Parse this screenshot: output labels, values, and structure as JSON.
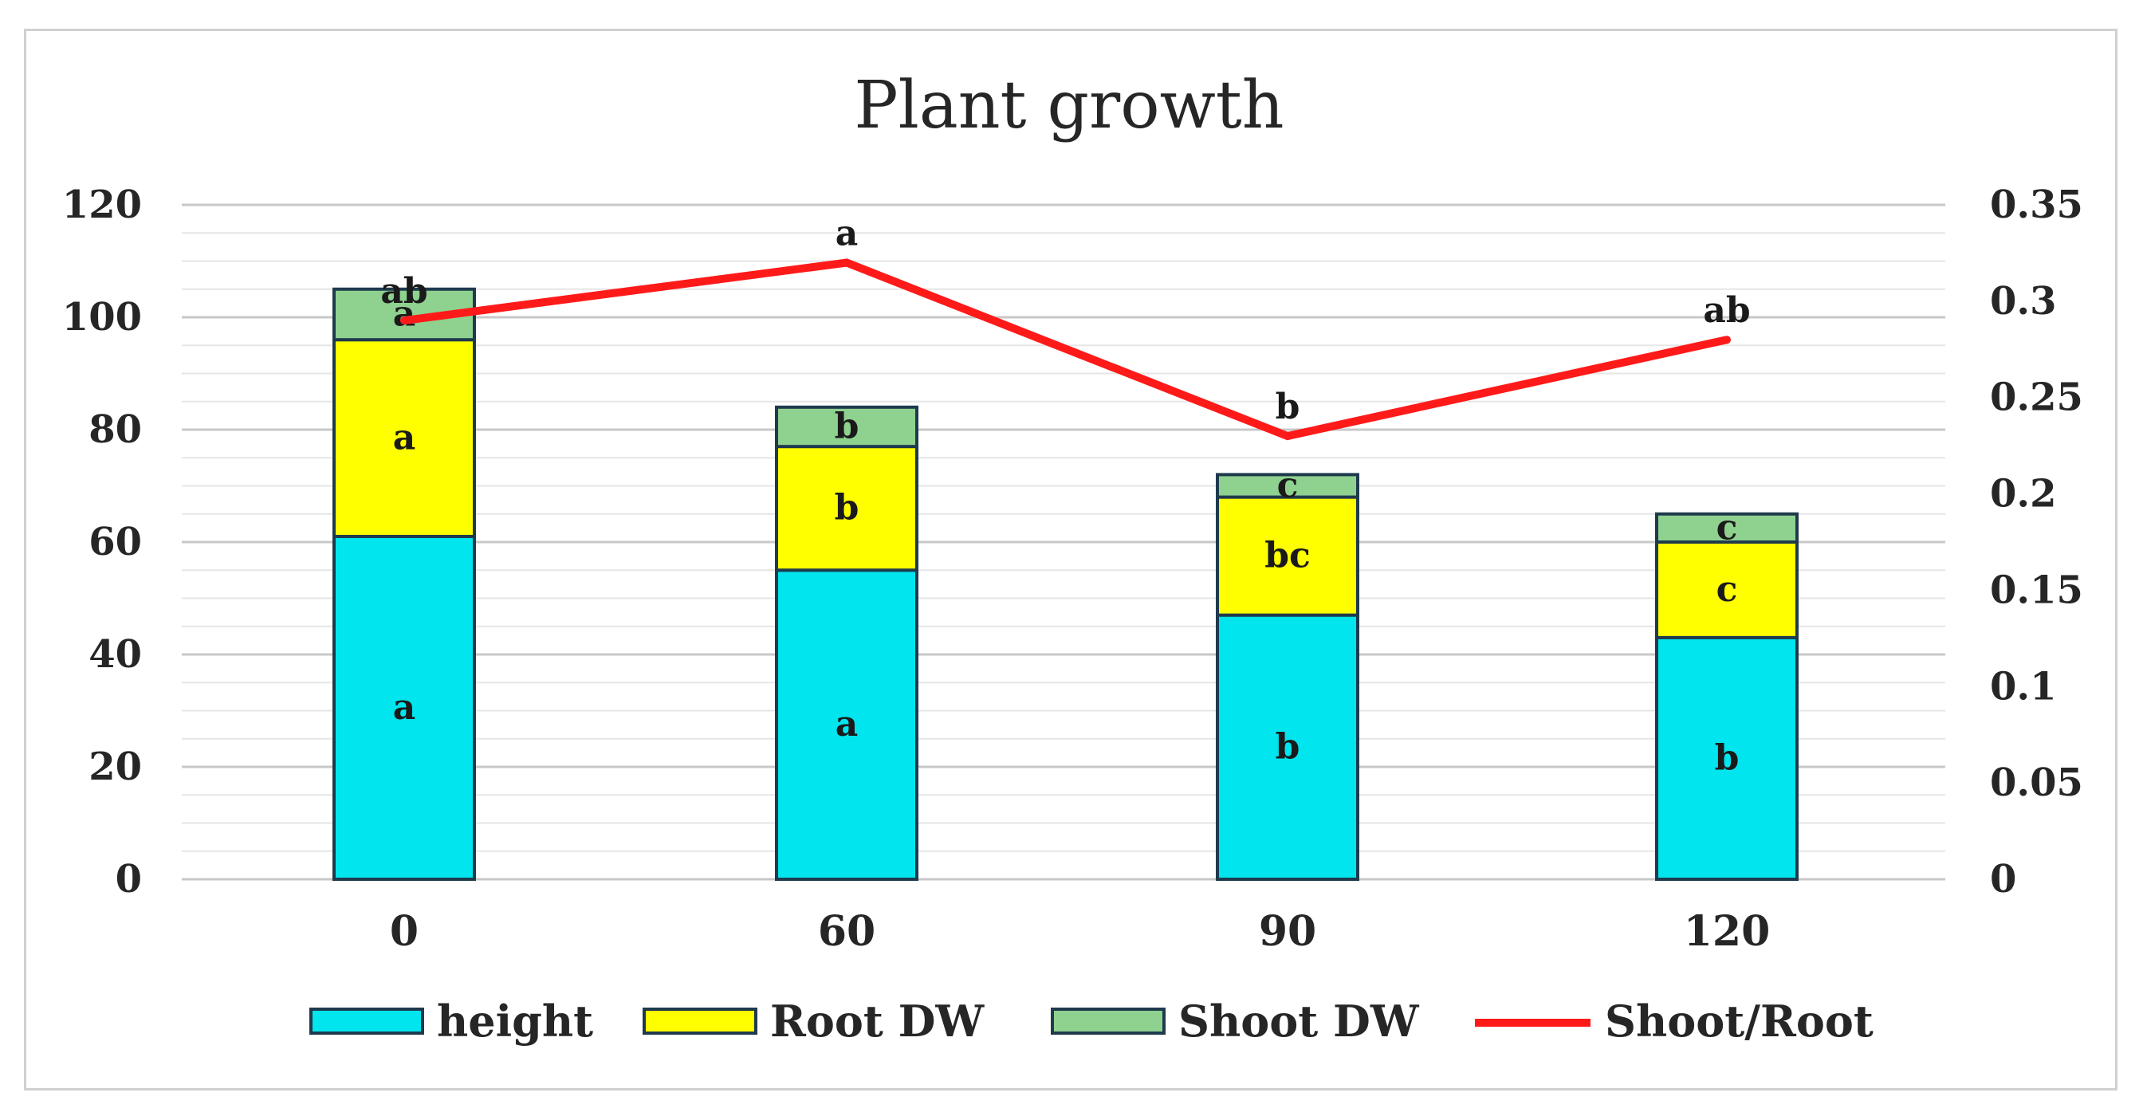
{
  "chart_data": {
    "type": "bar",
    "stacked": true,
    "title": "Plant growth",
    "categories": [
      "0",
      "60",
      "90",
      "120"
    ],
    "series": [
      {
        "name": "height",
        "kind": "bar",
        "axis": "left",
        "color": "#00e5ee",
        "values": [
          61,
          55,
          47,
          43
        ],
        "labels": [
          "a",
          "a",
          "b",
          "b"
        ]
      },
      {
        "name": "Root DW",
        "kind": "bar",
        "axis": "left",
        "color": "#ffff00",
        "values": [
          35,
          22,
          21,
          17
        ],
        "labels": [
          "a",
          "b",
          "bc",
          "c"
        ]
      },
      {
        "name": "Shoot DW",
        "kind": "bar",
        "axis": "left",
        "color": "#8fd18f",
        "values": [
          9,
          7,
          4,
          5
        ],
        "labels": [
          "a",
          "b",
          "c",
          "c"
        ]
      },
      {
        "name": "Shoot/Root",
        "kind": "line",
        "axis": "right",
        "color": "#ff1a1a",
        "values": [
          0.29,
          0.32,
          0.23,
          0.28
        ],
        "labels": [
          "ab",
          "a",
          "b",
          "ab"
        ]
      }
    ],
    "y_left": {
      "min": 0,
      "max": 120,
      "ticks": [
        "0",
        "20",
        "40",
        "60",
        "80",
        "100",
        "120"
      ]
    },
    "y_right": {
      "min": 0,
      "max": 0.35,
      "ticks": [
        "0",
        "0.05",
        "0.1",
        "0.15",
        "0.2",
        "0.25",
        "0.3",
        "0.35"
      ]
    },
    "grid": true,
    "legend_position": "bottom"
  }
}
